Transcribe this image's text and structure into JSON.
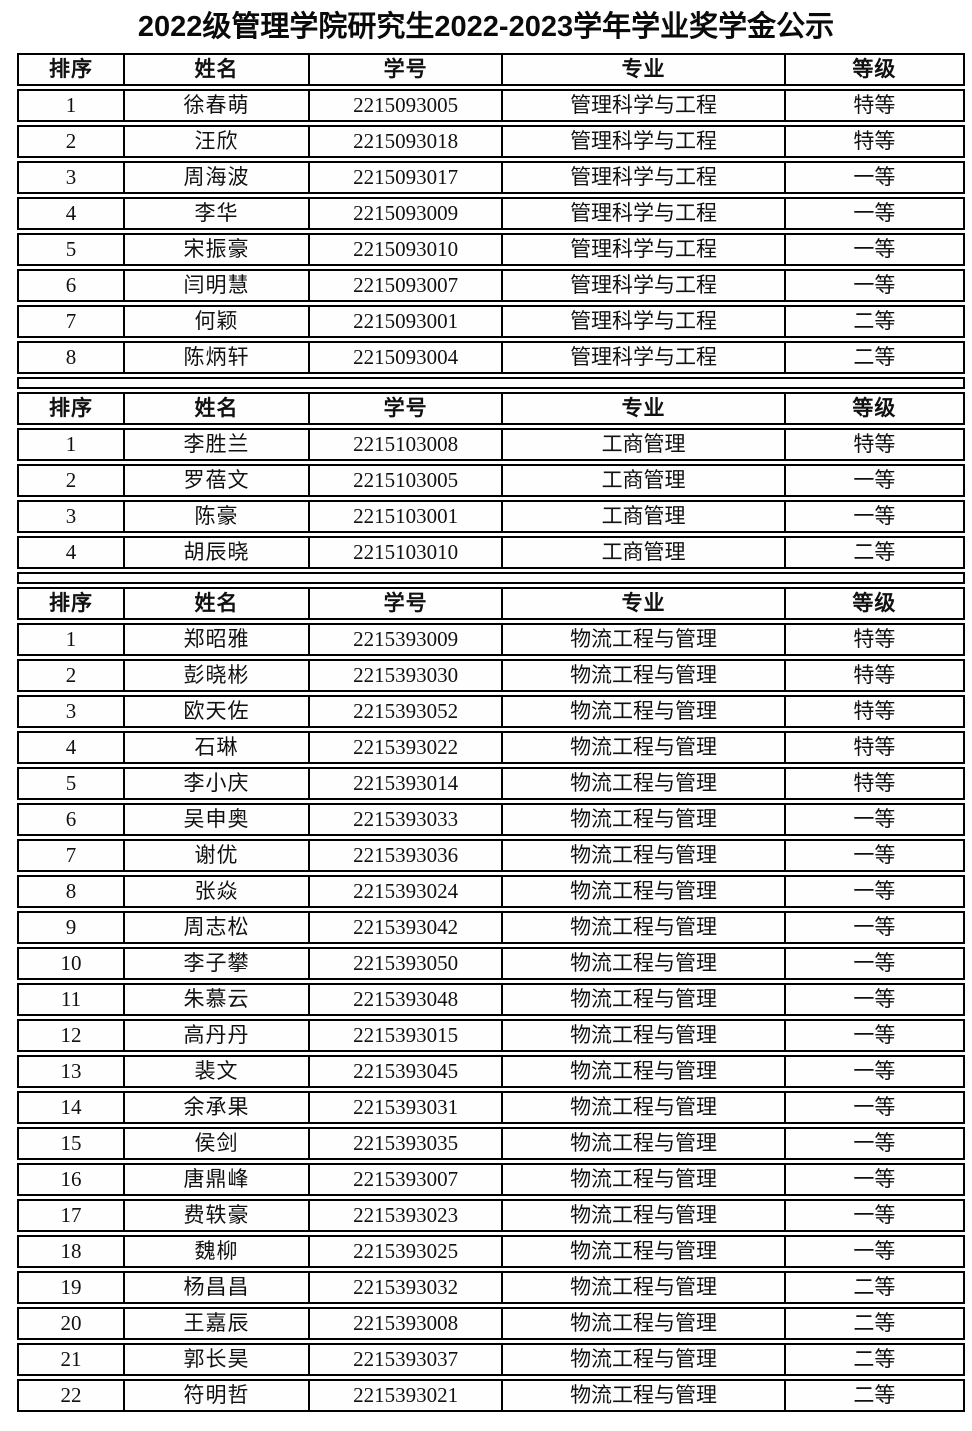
{
  "title": "2022级管理学院研究生2022-2023学年学业奖学金公示",
  "columns": [
    "排序",
    "姓名",
    "学号",
    "专业",
    "等级"
  ],
  "column_keys": [
    "rank",
    "name",
    "student_id",
    "major",
    "grade"
  ],
  "colors": {
    "background": "#ffffff",
    "border": "#000000",
    "text": "#111111"
  },
  "sections": [
    {
      "major": "管理科学与工程",
      "rows": [
        [
          "1",
          "徐春萌",
          "2215093005",
          "管理科学与工程",
          "特等"
        ],
        [
          "2",
          "汪欣",
          "2215093018",
          "管理科学与工程",
          "特等"
        ],
        [
          "3",
          "周海波",
          "2215093017",
          "管理科学与工程",
          "一等"
        ],
        [
          "4",
          "李华",
          "2215093009",
          "管理科学与工程",
          "一等"
        ],
        [
          "5",
          "宋振豪",
          "2215093010",
          "管理科学与工程",
          "一等"
        ],
        [
          "6",
          "闫明慧",
          "2215093007",
          "管理科学与工程",
          "一等"
        ],
        [
          "7",
          "何颖",
          "2215093001",
          "管理科学与工程",
          "二等"
        ],
        [
          "8",
          "陈炳轩",
          "2215093004",
          "管理科学与工程",
          "二等"
        ]
      ]
    },
    {
      "major": "工商管理",
      "rows": [
        [
          "1",
          "李胜兰",
          "2215103008",
          "工商管理",
          "特等"
        ],
        [
          "2",
          "罗蓓文",
          "2215103005",
          "工商管理",
          "一等"
        ],
        [
          "3",
          "陈豪",
          "2215103001",
          "工商管理",
          "一等"
        ],
        [
          "4",
          "胡辰晓",
          "2215103010",
          "工商管理",
          "二等"
        ]
      ]
    },
    {
      "major": "物流工程与管理",
      "rows": [
        [
          "1",
          "郑昭雅",
          "2215393009",
          "物流工程与管理",
          "特等"
        ],
        [
          "2",
          "彭晓彬",
          "2215393030",
          "物流工程与管理",
          "特等"
        ],
        [
          "3",
          "欧天佐",
          "2215393052",
          "物流工程与管理",
          "特等"
        ],
        [
          "4",
          "石琳",
          "2215393022",
          "物流工程与管理",
          "特等"
        ],
        [
          "5",
          "李小庆",
          "2215393014",
          "物流工程与管理",
          "特等"
        ],
        [
          "6",
          "吴申奥",
          "2215393033",
          "物流工程与管理",
          "一等"
        ],
        [
          "7",
          "谢优",
          "2215393036",
          "物流工程与管理",
          "一等"
        ],
        [
          "8",
          "张焱",
          "2215393024",
          "物流工程与管理",
          "一等"
        ],
        [
          "9",
          "周志松",
          "2215393042",
          "物流工程与管理",
          "一等"
        ],
        [
          "10",
          "李子攀",
          "2215393050",
          "物流工程与管理",
          "一等"
        ],
        [
          "11",
          "朱慕云",
          "2215393048",
          "物流工程与管理",
          "一等"
        ],
        [
          "12",
          "高丹丹",
          "2215393015",
          "物流工程与管理",
          "一等"
        ],
        [
          "13",
          "裴文",
          "2215393045",
          "物流工程与管理",
          "一等"
        ],
        [
          "14",
          "余承果",
          "2215393031",
          "物流工程与管理",
          "一等"
        ],
        [
          "15",
          "侯剑",
          "2215393035",
          "物流工程与管理",
          "一等"
        ],
        [
          "16",
          "唐鼎峰",
          "2215393007",
          "物流工程与管理",
          "一等"
        ],
        [
          "17",
          "费轶豪",
          "2215393023",
          "物流工程与管理",
          "一等"
        ],
        [
          "18",
          "魏柳",
          "2215393025",
          "物流工程与管理",
          "一等"
        ],
        [
          "19",
          "杨昌昌",
          "2215393032",
          "物流工程与管理",
          "二等"
        ],
        [
          "20",
          "王嘉辰",
          "2215393008",
          "物流工程与管理",
          "二等"
        ],
        [
          "21",
          "郭长昊",
          "2215393037",
          "物流工程与管理",
          "二等"
        ],
        [
          "22",
          "符明哲",
          "2215393021",
          "物流工程与管理",
          "二等"
        ]
      ]
    }
  ]
}
